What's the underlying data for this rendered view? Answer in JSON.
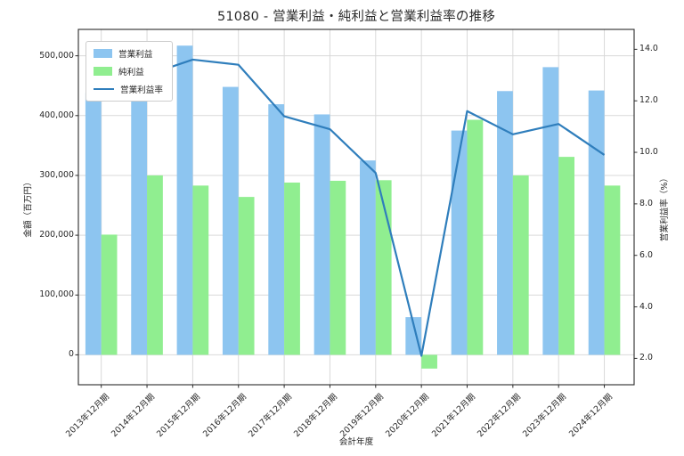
{
  "title": "51080 - 営業利益・純利益と営業利益率の推移",
  "chart_data": {
    "type": "bar",
    "subtype": "grouped bars with secondary-axis line",
    "categories": [
      "2013年12月期",
      "2014年12月期",
      "2015年12月期",
      "2016年12月期",
      "2017年12月期",
      "2018年12月期",
      "2019年12月期",
      "2020年12月期",
      "2021年12月期",
      "2022年12月期",
      "2023年12月期",
      "2024年12月期"
    ],
    "series": [
      {
        "name": "営業利益",
        "type": "bar",
        "axis": "left",
        "color": "#8dc5f0",
        "values": [
          438000,
          478000,
          517000,
          448000,
          419000,
          402000,
          325000,
          63000,
          375000,
          441000,
          481000,
          442000
        ]
      },
      {
        "name": "純利益",
        "type": "bar",
        "axis": "left",
        "color": "#90ee90",
        "values": [
          201000,
          300000,
          283000,
          264000,
          288000,
          291000,
          292000,
          -23000,
          393000,
          300000,
          331000,
          283000
        ]
      },
      {
        "name": "営業利益率",
        "type": "line",
        "axis": "right",
        "color": "#2f7ebc",
        "values": [
          12.2,
          13.0,
          13.6,
          13.4,
          11.4,
          10.9,
          9.2,
          2.1,
          11.6,
          10.7,
          11.1,
          9.9
        ]
      }
    ],
    "xlabel": "会計年度",
    "ylabel_left": "金額（百万円）",
    "ylabel_right": "営業利益率（%）",
    "yticks_left": {
      "values": [
        0,
        100000,
        200000,
        300000,
        400000,
        500000
      ],
      "labels": [
        "0",
        "100,000",
        "200,000",
        "300,000",
        "400,000",
        "500,000"
      ]
    },
    "yticks_right": {
      "values": [
        2,
        4,
        6,
        8,
        10,
        12,
        14
      ],
      "labels": [
        "2.0",
        "4.0",
        "6.0",
        "8.0",
        "10.0",
        "12.0",
        "14.0"
      ]
    },
    "ylim_left": [
      -50000,
      544000
    ],
    "ylim_right": [
      1.0,
      14.8
    ],
    "grid": true,
    "legend_position": "upper left",
    "colors": {
      "grid": "#d9d9d9",
      "spine": "#2b2b2b",
      "text": "#262626",
      "background": "#ffffff"
    }
  }
}
